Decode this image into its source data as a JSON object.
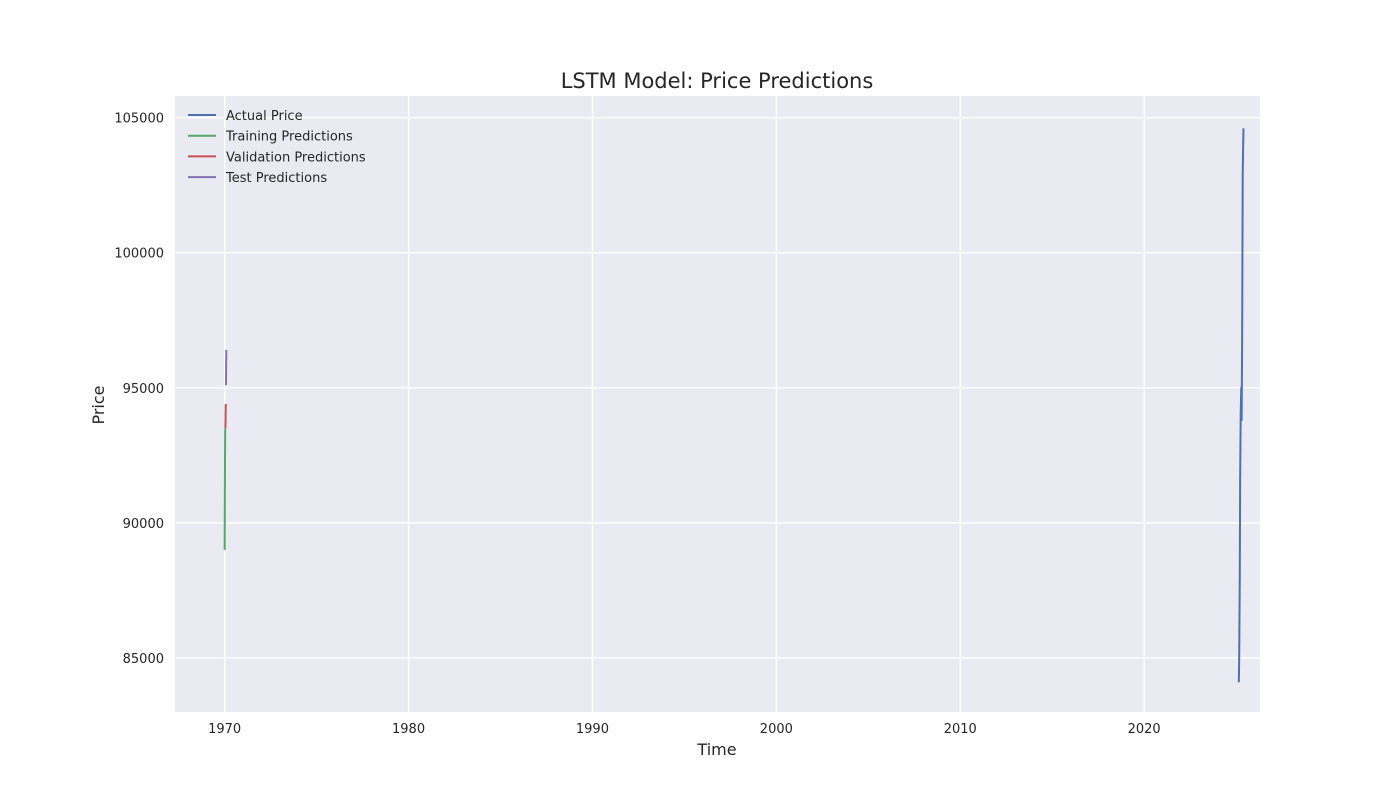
{
  "chart_data": {
    "type": "line",
    "title": "LSTM Model: Price Predictions",
    "xlabel": "Time",
    "ylabel": "Price",
    "xlim": [
      1967.3,
      2026.3
    ],
    "ylim": [
      83000,
      105800
    ],
    "x_ticks": [
      "1970",
      "1980",
      "1990",
      "2000",
      "2010",
      "2020"
    ],
    "y_ticks": [
      "85000",
      "90000",
      "95000",
      "100000",
      "105000"
    ],
    "grid": true,
    "legend_position": "top-left",
    "series": [
      {
        "name": "Actual Price",
        "color": "#4c72b0",
        "x": [
          2025.15,
          2025.17,
          2025.2,
          2025.22,
          2025.25,
          2025.28,
          2025.3,
          2025.33,
          2025.36,
          2025.4
        ],
        "y": [
          84100,
          85100,
          88000,
          91500,
          94000,
          95000,
          93800,
          96900,
          102900,
          104600
        ]
      },
      {
        "name": "Training Predictions",
        "color": "#55a868",
        "x": [
          1970.0,
          1970.01,
          1970.02,
          1970.03
        ],
        "y": [
          89000,
          91000,
          92500,
          93500
        ]
      },
      {
        "name": "Validation Predictions",
        "color": "#c44e52",
        "x": [
          1970.04,
          1970.05,
          1970.06
        ],
        "y": [
          93500,
          94000,
          94400
        ]
      },
      {
        "name": "Test Predictions",
        "color": "#8172b2",
        "x": [
          1970.07,
          1970.08,
          1970.09
        ],
        "y": [
          95100,
          95800,
          96400
        ]
      }
    ]
  }
}
